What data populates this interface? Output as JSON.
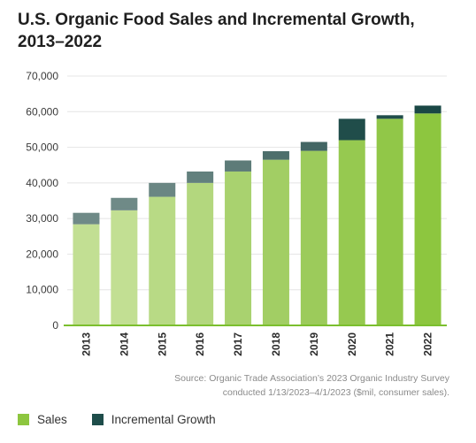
{
  "title_line1": "U.S. Organic Food Sales and Incremental Growth,",
  "title_line2": "2013–2022",
  "source_line1": "Source: Organic Trade Association’s 2023 Organic Industry Survey",
  "source_line2": "conducted 1/13/2023–4/1/2023 ($mil, consumer sales).",
  "legend": [
    {
      "label": "Sales",
      "color": "#8dc63f"
    },
    {
      "label": "Incremental Growth",
      "color": "#1e4d4a"
    }
  ],
  "colors": {
    "sales": [
      "#c2df93",
      "#c2df93",
      "#b8da85",
      "#b3d77e",
      "#a9d26f",
      "#a2ce64",
      "#9ccb5b",
      "#96c950",
      "#91c748",
      "#8dc63f"
    ],
    "growth": [
      "#6f8a87",
      "#6f8a87",
      "#6a8683",
      "#62807d",
      "#5d7b78",
      "#4e6f6c",
      "#436664",
      "#204d4a",
      "#204d4a",
      "#1a4745"
    ],
    "axis": "#7bbf2e"
  },
  "chart_data": {
    "type": "bar",
    "stacked": true,
    "categories": [
      "2013",
      "2014",
      "2015",
      "2016",
      "2017",
      "2018",
      "2019",
      "2020",
      "2021",
      "2022"
    ],
    "series": [
      {
        "name": "Sales",
        "values": [
          28400,
          32300,
          36100,
          40000,
          43200,
          46500,
          49000,
          52000,
          58000,
          59500
        ]
      },
      {
        "name": "Incremental Growth",
        "values": [
          3200,
          3500,
          3900,
          3200,
          3100,
          2400,
          2500,
          6000,
          1000,
          2200
        ]
      }
    ],
    "ylim": [
      0,
      70000
    ],
    "yticks": [
      0,
      10000,
      20000,
      30000,
      40000,
      50000,
      60000,
      70000
    ],
    "ytick_labels": [
      "0",
      "10,000",
      "20,000",
      "30,000",
      "40,000",
      "50,000",
      "60,000",
      "70,000"
    ],
    "grid": true,
    "legend_position": "bottom-left"
  }
}
